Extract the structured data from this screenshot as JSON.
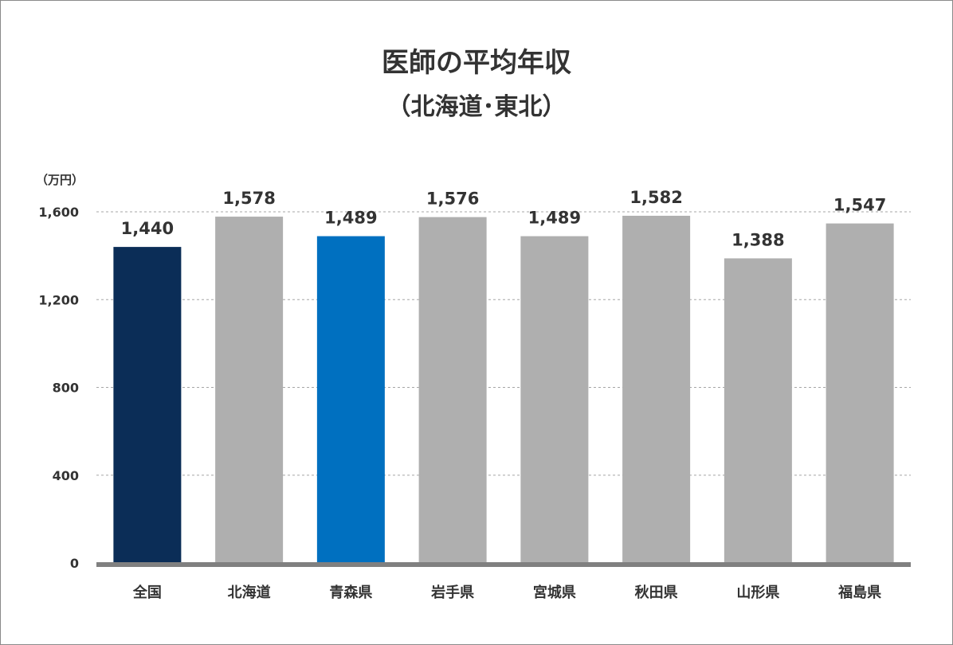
{
  "chart_data": {
    "type": "bar",
    "title": "医師の平均年収",
    "subtitle": "（北海道･東北）",
    "unit_label": "（万円）",
    "categories": [
      "全国",
      "北海道",
      "青森県",
      "岩手県",
      "宮城県",
      "秋田県",
      "山形県",
      "福島県"
    ],
    "values": [
      1440,
      1578,
      1489,
      1576,
      1489,
      1582,
      1388,
      1547
    ],
    "value_labels": [
      "1,440",
      "1,578",
      "1,489",
      "1,576",
      "1,489",
      "1,582",
      "1,388",
      "1,547"
    ],
    "y_ticks": [
      0,
      400,
      800,
      1200,
      1600
    ],
    "y_tick_labels": [
      "0",
      "400",
      "800",
      "1,200",
      "1,600"
    ],
    "ylim": [
      0,
      1600
    ],
    "grid": true,
    "gridline_style": "dashed",
    "bar_colors": [
      "#0b2d57",
      "#afafaf",
      "#0070c0",
      "#afafaf",
      "#afafaf",
      "#afafaf",
      "#afafaf",
      "#afafaf"
    ],
    "axis_color": "#808080",
    "grid_color": "#a6a6a6"
  }
}
